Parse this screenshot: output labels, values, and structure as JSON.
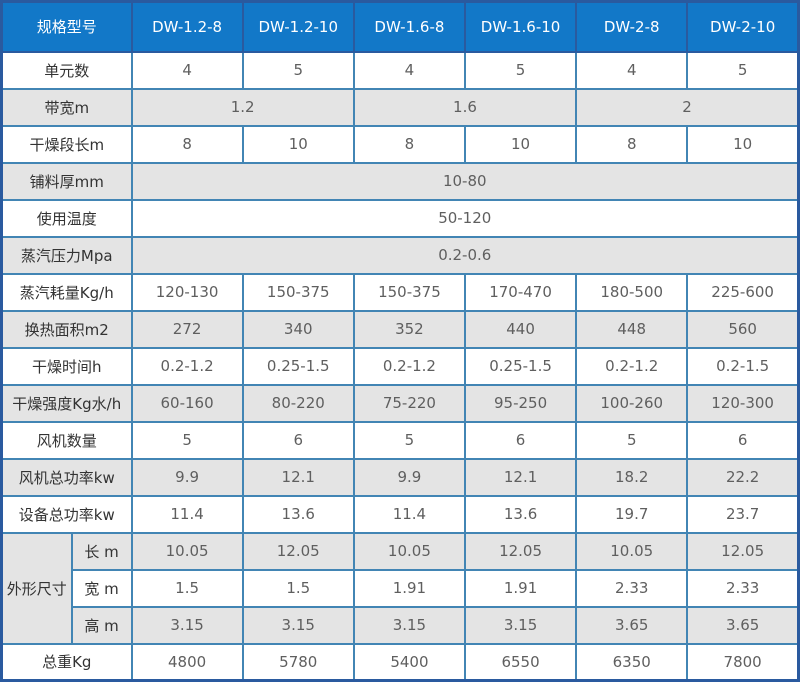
{
  "colors": {
    "header_bg": "#1278c8",
    "outer_border": "#2a5a9f",
    "inner_border": "#4285b4",
    "alt_row_bg": "#e4e4e4",
    "label_text": "#333333",
    "value_text": "#5f5f5f",
    "header_text": "#ffffff"
  },
  "chart_data": {
    "type": "table",
    "header": {
      "label_col": "规格型号",
      "columns": [
        "DW-1.2-8",
        "DW-1.2-10",
        "DW-1.6-8",
        "DW-1.6-10",
        "DW-2-8",
        "DW-2-10"
      ]
    },
    "rows": [
      {
        "label": "单元数",
        "span": 1,
        "values": [
          "4",
          "5",
          "4",
          "5",
          "4",
          "5"
        ]
      },
      {
        "label": "带宽m",
        "span": 2,
        "values": [
          "1.2",
          "1.6",
          "2"
        ]
      },
      {
        "label": "干燥段长m",
        "span": 1,
        "values": [
          "8",
          "10",
          "8",
          "10",
          "8",
          "10"
        ]
      },
      {
        "label": "铺料厚mm",
        "span": 6,
        "values": [
          "10-80"
        ]
      },
      {
        "label": "使用温度",
        "span": 6,
        "values": [
          "50-120"
        ]
      },
      {
        "label": "蒸汽压力Mpa",
        "span": 6,
        "values": [
          "0.2-0.6"
        ]
      },
      {
        "label": "蒸汽耗量Kg/h",
        "span": 1,
        "values": [
          "120-130",
          "150-375",
          "150-375",
          "170-470",
          "180-500",
          "225-600"
        ]
      },
      {
        "label": "换热面积m2",
        "span": 1,
        "values": [
          "272",
          "340",
          "352",
          "440",
          "448",
          "560"
        ]
      },
      {
        "label": "干燥时间h",
        "span": 1,
        "values": [
          "0.2-1.2",
          "0.25-1.5",
          "0.2-1.2",
          "0.25-1.5",
          "0.2-1.2",
          "0.2-1.5"
        ]
      },
      {
        "label": "干燥强度Kg水/h",
        "span": 1,
        "values": [
          "60-160",
          "80-220",
          "75-220",
          "95-250",
          "100-260",
          "120-300"
        ]
      },
      {
        "label": "风机数量",
        "span": 1,
        "values": [
          "5",
          "6",
          "5",
          "6",
          "5",
          "6"
        ]
      },
      {
        "label": "风机总功率kw",
        "span": 1,
        "values": [
          "9.9",
          "12.1",
          "9.9",
          "12.1",
          "18.2",
          "22.2"
        ]
      },
      {
        "label": "设备总功率kw",
        "span": 1,
        "values": [
          "11.4",
          "13.6",
          "11.4",
          "13.6",
          "19.7",
          "23.7"
        ]
      }
    ],
    "dimension_group": {
      "label": "外形尺寸",
      "rows": [
        {
          "label": "长 m",
          "values": [
            "10.05",
            "12.05",
            "10.05",
            "12.05",
            "10.05",
            "12.05"
          ]
        },
        {
          "label": "宽 m",
          "values": [
            "1.5",
            "1.5",
            "1.91",
            "1.91",
            "2.33",
            "2.33"
          ]
        },
        {
          "label": "高 m",
          "values": [
            "3.15",
            "3.15",
            "3.15",
            "3.15",
            "3.65",
            "3.65"
          ]
        }
      ]
    },
    "total_row": {
      "label": "总重Kg",
      "values": [
        "4800",
        "5780",
        "5400",
        "6550",
        "6350",
        "7800"
      ]
    }
  }
}
